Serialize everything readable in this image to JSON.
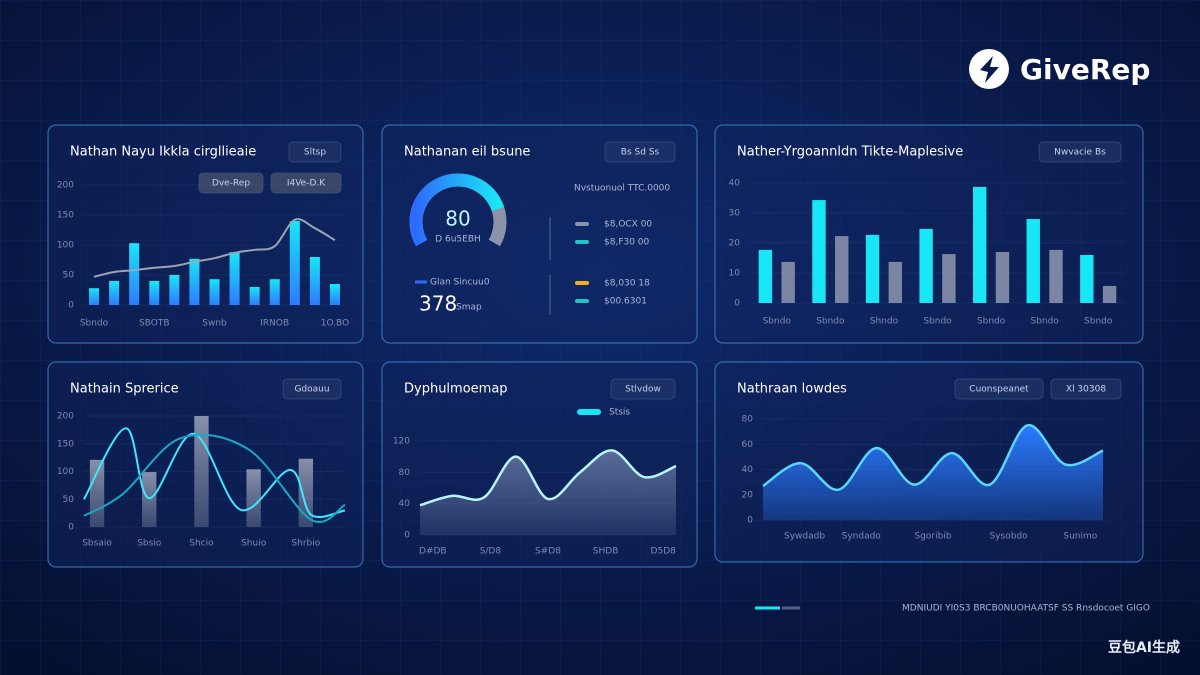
{
  "header": {
    "brand": "GiveRep"
  },
  "footer": {
    "caption": "MDNIUDI YI0S3 BRCB0NUOHAATSF SS Rnsdocoet GIGO",
    "watermark": "豆包AI生成"
  },
  "chart_data": [
    {
      "type": "bar",
      "title": "Nathan Nayu Ikkla cirgllieaie",
      "buttons": [
        "Sltsp"
      ],
      "chips": [
        "Dve-Rep",
        "I4Ve-D.K"
      ],
      "categories": [
        "Sbndo",
        null,
        null,
        "SBOTB",
        null,
        null,
        "Swnb",
        null,
        null,
        "IRNOB",
        null,
        null,
        "1O.BO"
      ],
      "series": [
        {
          "type": "bar",
          "color": "#2d7bff",
          "values": [
            28,
            40,
            103,
            40,
            50,
            77,
            43,
            88,
            30,
            43,
            140,
            80,
            35
          ]
        },
        {
          "type": "line",
          "color": "#9aa4b6",
          "values": [
            47,
            55,
            58,
            62,
            65,
            72,
            78,
            87,
            92,
            98,
            142,
            128,
            108
          ]
        }
      ],
      "ylim": [
        0,
        200
      ],
      "yticks": [
        0,
        50,
        100,
        150,
        200
      ]
    },
    {
      "type": "gauge",
      "title": "Nathanan eil bsune",
      "buttons": [
        "Bs Sd Ss"
      ],
      "value": 80,
      "value_sub": "D 6u5EBH",
      "range": [
        0,
        100
      ],
      "color": "#2d6bff",
      "color2": "#19e6f5",
      "total": 378,
      "total_label": "Glan Sincuu0",
      "total_unit": "Smap",
      "list_title": "Nvstuonuol TTC.0000",
      "items": [
        {
          "label": "$8,OCX 00",
          "color": "#8a94a8"
        },
        {
          "label": "$8,F30 00",
          "color": "#1ec8c8"
        },
        {
          "label": "$8,030 18",
          "color": "#f0b020"
        },
        {
          "label": "$00.6301",
          "color": "#1ec8c8"
        }
      ]
    },
    {
      "type": "bar",
      "title": "Nather-Yrgoannldn Tikte-Maplesive",
      "buttons": [
        "Nwvacie Bs"
      ],
      "categories": [
        "Sbndo",
        "Sbndo",
        "Shndo",
        "Sbndo",
        "Sbndo",
        "Sbndo",
        "Sbndo"
      ],
      "series": [
        {
          "type": "bar",
          "color": "#19e6f5",
          "values": [
            17.7,
            34.3,
            22.7,
            24.7,
            38.7,
            28,
            16
          ]
        },
        {
          "type": "bar",
          "color": "#7a86a4",
          "values": [
            13.7,
            22.3,
            13.7,
            16.3,
            17,
            17.7,
            5.7
          ]
        }
      ],
      "ylim": [
        0,
        40
      ],
      "yticks": [
        0,
        10,
        20,
        30,
        40
      ]
    },
    {
      "type": "combo",
      "title": "Nathain Sprerice",
      "buttons": [
        "Gdoauu"
      ],
      "series": [
        {
          "type": "bar",
          "color": "#8e96ae",
          "x": [
            0.5,
            2.5,
            4.5,
            6.5,
            8.5
          ],
          "values": [
            121,
            99,
            200,
            104,
            123
          ]
        },
        {
          "type": "line",
          "color": "#3fe6ff",
          "x": [
            0,
            1.6,
            2.5,
            4.2,
            6,
            7.9,
            8.7,
            10
          ],
          "values": [
            50,
            178,
            52,
            168,
            31,
            103,
            22,
            30
          ]
        },
        {
          "type": "line",
          "color": "#1aa6c4",
          "x": [
            0,
            1.5,
            3.7,
            6.3,
            8.7,
            10
          ],
          "values": [
            20,
            60,
            160,
            140,
            13,
            40
          ]
        }
      ],
      "xlim": [
        0,
        10
      ],
      "ylim": [
        0,
        200
      ],
      "yticks": [
        0,
        50,
        100,
        150,
        200
      ],
      "xticks": [
        {
          "value": 0.5,
          "label": "Sbsaio"
        },
        {
          "value": 2.5,
          "label": "Sbsio"
        },
        {
          "value": 4.5,
          "label": "Shcio"
        },
        {
          "value": 6.5,
          "label": "Shuio"
        },
        {
          "value": 8.5,
          "label": "Shrbio"
        }
      ]
    },
    {
      "type": "area",
      "title": "Dyphulmoemap",
      "buttons": [
        "Stlvdow"
      ],
      "series": [
        {
          "name": "Stsis",
          "color": "#5a6c98",
          "line_color": "#b8f4ff",
          "legend_color": "#19e6f5",
          "x": [
            0,
            1,
            2,
            3,
            4,
            5,
            6,
            7,
            8
          ],
          "values": [
            38,
            50,
            48,
            100,
            46,
            80,
            108,
            74,
            88
          ]
        }
      ],
      "xlim": [
        0,
        8
      ],
      "ylim": [
        0,
        120
      ],
      "yticks": [
        0,
        40,
        80,
        120
      ],
      "xticks": [
        {
          "value": 0.4,
          "label": "D#DB"
        },
        {
          "value": 2.2,
          "label": "S/D8"
        },
        {
          "value": 4,
          "label": "S#D8"
        },
        {
          "value": 5.8,
          "label": "SHDB"
        },
        {
          "value": 7.6,
          "label": "D5D8"
        }
      ]
    },
    {
      "type": "area",
      "title": "Nathraan lowdes",
      "buttons": [
        "Cuonspeanet",
        "Xl 30308"
      ],
      "series": [
        {
          "color": "#2a7bff",
          "line_color": "#5ad6ff",
          "x": [
            0,
            1,
            2,
            3,
            4,
            5,
            6,
            7,
            8,
            9
          ],
          "values": [
            27,
            45,
            24,
            57,
            28,
            53,
            28,
            75,
            44,
            55
          ]
        }
      ],
      "xlim": [
        0,
        9
      ],
      "ylim": [
        0,
        80
      ],
      "yticks": [
        0,
        20,
        40,
        60,
        80
      ],
      "xticks": [
        {
          "value": 1.1,
          "label": "Sywdadb"
        },
        {
          "value": 2.6,
          "label": "Syndado"
        },
        {
          "value": 4.5,
          "label": "Sgoribib"
        },
        {
          "value": 6.5,
          "label": "Sysobdo"
        },
        {
          "value": 8.4,
          "label": "Sunimo"
        }
      ]
    }
  ]
}
